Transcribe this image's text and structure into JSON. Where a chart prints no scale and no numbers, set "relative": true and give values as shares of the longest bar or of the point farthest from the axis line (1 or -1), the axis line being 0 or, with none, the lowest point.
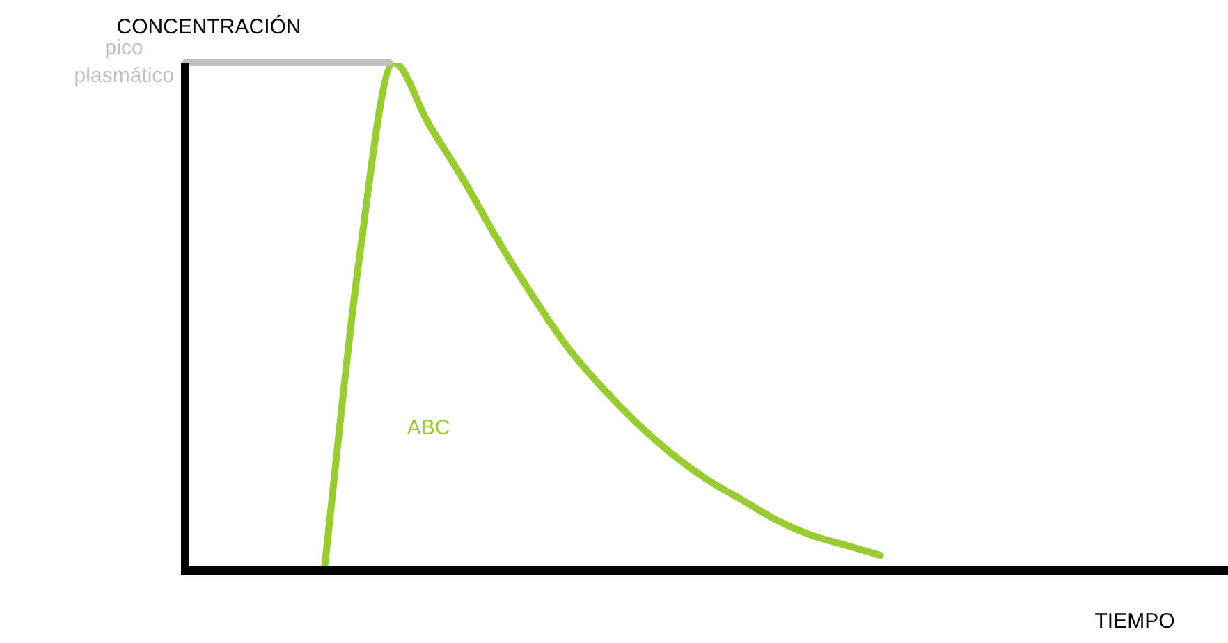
{
  "chart_data": {
    "type": "line",
    "relative": true,
    "ylabel": "CONCENTRACIÓN",
    "xlabel": "TIEMPO",
    "categories": [
      null,
      null,
      null,
      null,
      null,
      null,
      null,
      null,
      null,
      null,
      null,
      null,
      null,
      null,
      null,
      null,
      null,
      null,
      null,
      null,
      null,
      null,
      null,
      null,
      null,
      null,
      null,
      null,
      null,
      null,
      null
    ],
    "series": [
      {
        "color": "#99cc33",
        "values": [
          null,
          null,
          null,
          null,
          0,
          0.61,
          1,
          0.88,
          0.77,
          0.65,
          0.54,
          0.44,
          0.36,
          0.29,
          0.23,
          0.18,
          0.14,
          0.1,
          0.07,
          0.05,
          0.03,
          null,
          null,
          null,
          null,
          null,
          null,
          null,
          null,
          null,
          null
        ]
      }
    ],
    "ref_lines": [
      {
        "axis": "y",
        "value": 1,
        "label": "pico plasmático",
        "color": "#c0c0c0"
      }
    ],
    "annotations": [
      "ABC"
    ],
    "marker": "none",
    "line_style": "solid",
    "legend": false
  }
}
